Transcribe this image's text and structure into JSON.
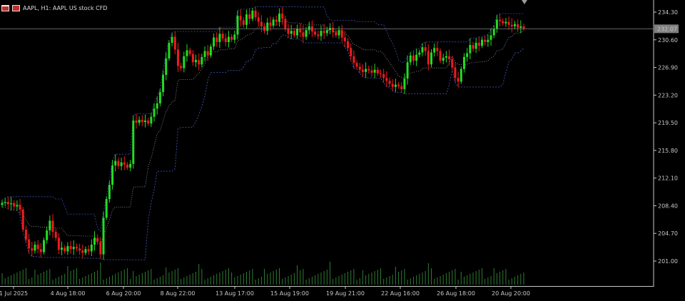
{
  "header": {
    "symbol_title": "AAPL, H1:  AAPL US stock CFD"
  },
  "colors": {
    "background": "#000000",
    "bull": "#22dd22",
    "bear": "#ee1c1c",
    "doji": "#ffffff",
    "channel_upper": "#3a4fb0",
    "channel_lower": "#4a5cc0",
    "channel_mid": "#d0d0d0",
    "volume": "#2e7d32",
    "axis_text": "#c8c8c8",
    "current_price_line": "#808080",
    "current_price_badge": "#808080"
  },
  "chart_data": {
    "type": "candlestick",
    "title": "AAPL, H1:  AAPL US stock CFD",
    "price_axis": {
      "ticks": [
        "234.30",
        "230.60",
        "226.90",
        "223.20",
        "219.50",
        "215.80",
        "212.10",
        "208.40",
        "204.70",
        "201.00"
      ],
      "ylim": [
        198.6,
        235.9
      ]
    },
    "current_price": "232.07",
    "time_axis": {
      "ticks": [
        "1 Jul 2025",
        "4 Aug 18:00",
        "6 Aug 20:00",
        "8 Aug 22:00",
        "13 Aug 17:00",
        "15 Aug 19:00",
        "19 Aug 21:00",
        "22 Aug 16:00",
        "26 Aug 18:00",
        "20 Aug 20:00"
      ]
    },
    "grid": false,
    "series": [
      {
        "kind": "ohlc",
        "closes": [
          208.8,
          208.9,
          208.6,
          208.7,
          208.3,
          208.5,
          207.9,
          205.2,
          203.9,
          202.7,
          202.4,
          203.2,
          202.6,
          202.2,
          203.8,
          205.1,
          206.4,
          204.9,
          204.1,
          202.5,
          202.8,
          202.3,
          203.0,
          202.6,
          202.9,
          202.7,
          202.4,
          202.1,
          202.6,
          202.3,
          203.2,
          204.1,
          203.6,
          201.9,
          206.8,
          209.3,
          211.2,
          213.8,
          214.4,
          213.7,
          214.2,
          213.9,
          213.5,
          214.0,
          219.8,
          219.5,
          219.9,
          219.6,
          219.8,
          219.4,
          220.3,
          221.4,
          222.1,
          223.6,
          225.9,
          228.1,
          230.2,
          231.0,
          229.3,
          227.1,
          226.8,
          228.4,
          229.2,
          228.7,
          227.6,
          227.9,
          227.3,
          228.3,
          229.1,
          228.5,
          229.7,
          230.9,
          230.3,
          231.4,
          230.8,
          230.3,
          231.0,
          230.6,
          231.3,
          233.8,
          233.2,
          232.6,
          234.0,
          233.4,
          234.5,
          233.6,
          233.0,
          232.4,
          231.8,
          232.9,
          232.5,
          233.3,
          233.0,
          234.1,
          233.4,
          232.1,
          231.4,
          231.8,
          231.2,
          232.1,
          231.6,
          231.0,
          231.9,
          232.4,
          231.7,
          231.3,
          231.1,
          231.8,
          231.5,
          231.9,
          232.2,
          231.6,
          231.2,
          231.9,
          230.9,
          230.4,
          229.5,
          228.4,
          227.5,
          227.0,
          226.6,
          226.3,
          226.7,
          226.5,
          226.2,
          226.6,
          226.1,
          226.0,
          225.5,
          225.1,
          224.7,
          224.3,
          224.6,
          224.4,
          224.0,
          225.4,
          227.6,
          228.5,
          227.8,
          228.6,
          228.9,
          229.6,
          229.1,
          227.3,
          228.9,
          229.5,
          229.1,
          227.8,
          228.2,
          228.4,
          228.0,
          226.9,
          225.5,
          225.0,
          226.7,
          228.3,
          228.8,
          229.9,
          229.4,
          230.2,
          229.8,
          230.6,
          230.3,
          230.6,
          231.2,
          232.1,
          233.3,
          233.1,
          232.8,
          233.0,
          232.6,
          232.4,
          232.7,
          232.2,
          232.4,
          232.1
        ]
      },
      {
        "kind": "channel_upper",
        "name": ""
      },
      {
        "kind": "channel_mid",
        "name": ""
      },
      {
        "kind": "channel_lower",
        "name": ""
      },
      {
        "kind": "volume",
        "name": ""
      }
    ]
  }
}
